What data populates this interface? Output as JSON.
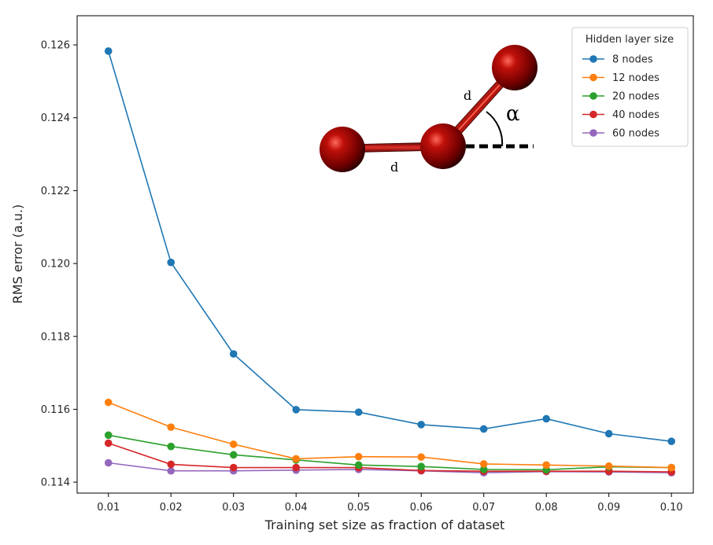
{
  "chart_data": {
    "type": "line",
    "title": "",
    "xlabel": "Training set size as fraction of dataset",
    "ylabel": "RMS error (a.u.)",
    "x": [
      0.01,
      0.02,
      0.03,
      0.04,
      0.05,
      0.06,
      0.07,
      0.08,
      0.09,
      0.1
    ],
    "x_tick_labels": [
      "0.01",
      "0.02",
      "0.03",
      "0.04",
      "0.05",
      "0.06",
      "0.07",
      "0.08",
      "0.09",
      "0.10"
    ],
    "y_ticks": [
      0.114,
      0.116,
      0.118,
      0.12,
      0.122,
      0.124,
      0.126
    ],
    "y_tick_labels": [
      "0.114",
      "0.116",
      "0.118",
      "0.120",
      "0.122",
      "0.124",
      "0.126"
    ],
    "xlim": [
      0.005,
      0.1035
    ],
    "ylim": [
      0.1137,
      0.1268
    ],
    "grid": false,
    "legend": {
      "title": "Hidden layer size",
      "placement": "top-right"
    },
    "series": [
      {
        "name": "8 nodes",
        "color": "#1f77b4",
        "values": [
          0.12583,
          0.12003,
          0.11752,
          0.11599,
          0.11592,
          0.11558,
          0.11546,
          0.11574,
          0.11533,
          0.11512
        ]
      },
      {
        "name": "12 nodes",
        "color": "#ff7f0e",
        "values": [
          0.11619,
          0.11551,
          0.11504,
          0.11464,
          0.1147,
          0.11469,
          0.1145,
          0.11447,
          0.11444,
          0.1144
        ]
      },
      {
        "name": "20 nodes",
        "color": "#2ca02c",
        "values": [
          0.11529,
          0.11498,
          0.11475,
          0.11461,
          0.11447,
          0.11443,
          0.11435,
          0.11434,
          0.11442,
          0.1144
        ]
      },
      {
        "name": "40 nodes",
        "color": "#d62728",
        "values": [
          0.11507,
          0.11449,
          0.1144,
          0.1144,
          0.1144,
          0.11432,
          0.1143,
          0.1143,
          0.1143,
          0.11428
        ]
      },
      {
        "name": "60 nodes",
        "color": "#9467bd",
        "values": [
          0.11453,
          0.11431,
          0.11431,
          0.11433,
          0.11435,
          0.11431,
          0.11426,
          0.11429,
          0.11428,
          0.11426
        ]
      }
    ],
    "inset": {
      "bond_label_1": "d",
      "bond_label_2": "d",
      "angle_label": "α",
      "atom_color": "#8b0000"
    }
  }
}
